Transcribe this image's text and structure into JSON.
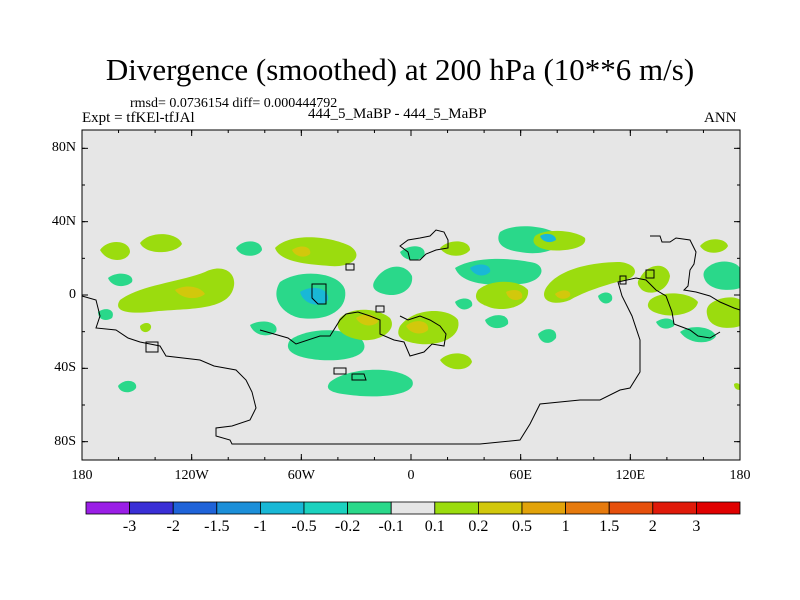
{
  "title": "Divergence (smoothed) at 200 hPa (10**6 m/s)",
  "stats": "rmsd= 0.0736154 diff= 0.000444792",
  "experiment": "Expt = tfKEl-tfJAl",
  "case": "444_5_MaBP - 444_5_MaBP",
  "season": "ANN",
  "lat_ticks": [
    "80N",
    "40N",
    "0",
    "40S",
    "80S"
  ],
  "lon_ticks": [
    "180",
    "120W",
    "60W",
    "0",
    "60E",
    "120E",
    "180"
  ],
  "colorbar": {
    "labels": [
      "-3",
      "-2",
      "-1.5",
      "-1",
      "-0.5",
      "-0.2",
      "-0.1",
      "0.1",
      "0.2",
      "0.5",
      "1",
      "1.5",
      "2",
      "3"
    ],
    "colors": [
      "#9a1ee6",
      "#3a2fd6",
      "#1f63d9",
      "#1c8fd9",
      "#19b8d6",
      "#1bd2bf",
      "#2ad88a",
      "#e6e6e6",
      "#9bdc0e",
      "#d2c80c",
      "#e2a30a",
      "#e67a0d",
      "#e6500c",
      "#e01a0a",
      "#e00000"
    ]
  },
  "colors": {
    "background": "#e6e6e6",
    "positive_low": "#9bdc0e",
    "positive_mid": "#d2c80c",
    "negative_low": "#2ad88a",
    "negative_mid": "#19b8d6"
  }
}
